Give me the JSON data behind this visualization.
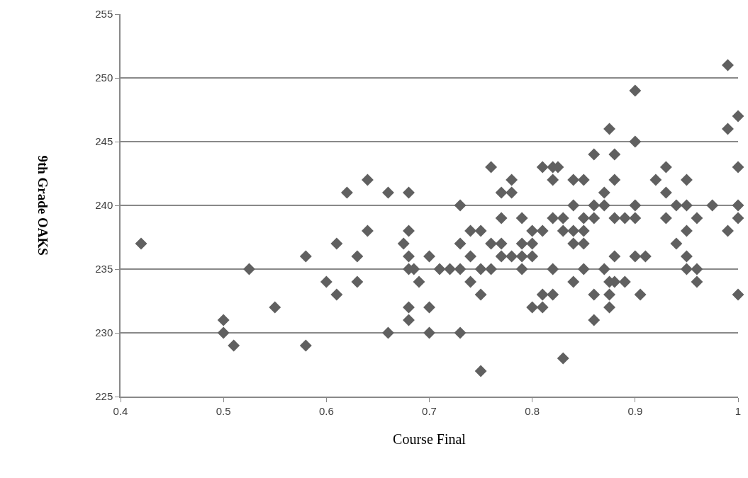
{
  "chart_data": {
    "type": "scatter",
    "xlabel": "Course Final",
    "ylabel": "9th Grade OAKS",
    "xlim": [
      0.4,
      1
    ],
    "xticks": [
      0.4,
      0.5,
      0.6,
      0.7,
      0.8,
      0.9,
      1
    ],
    "ylim": [
      225,
      255
    ],
    "yticks": [
      225,
      230,
      235,
      240,
      245,
      250,
      255
    ],
    "grid": "y",
    "marker": "diamond",
    "series": [
      {
        "color": "#606060",
        "x": [
          0.42,
          0.5,
          0.5,
          0.51,
          0.525,
          0.55,
          0.58,
          0.58,
          0.6,
          0.61,
          0.61,
          0.62,
          0.63,
          0.63,
          0.64,
          0.64,
          0.66,
          0.66,
          0.675,
          0.68,
          0.68,
          0.68,
          0.68,
          0.68,
          0.68,
          0.685,
          0.69,
          0.7,
          0.7,
          0.7,
          0.71,
          0.72,
          0.73,
          0.73,
          0.73,
          0.73,
          0.74,
          0.74,
          0.74,
          0.75,
          0.75,
          0.75,
          0.75,
          0.76,
          0.76,
          0.76,
          0.77,
          0.77,
          0.77,
          0.77,
          0.78,
          0.78,
          0.78,
          0.79,
          0.79,
          0.79,
          0.79,
          0.8,
          0.8,
          0.8,
          0.8,
          0.81,
          0.81,
          0.81,
          0.81,
          0.82,
          0.82,
          0.82,
          0.82,
          0.82,
          0.825,
          0.83,
          0.83,
          0.83,
          0.84,
          0.84,
          0.84,
          0.84,
          0.84,
          0.85,
          0.85,
          0.85,
          0.85,
          0.85,
          0.86,
          0.86,
          0.86,
          0.86,
          0.86,
          0.87,
          0.87,
          0.87,
          0.875,
          0.875,
          0.875,
          0.875,
          0.88,
          0.88,
          0.88,
          0.88,
          0.88,
          0.89,
          0.89,
          0.9,
          0.9,
          0.9,
          0.9,
          0.9,
          0.905,
          0.91,
          0.92,
          0.93,
          0.93,
          0.93,
          0.94,
          0.94,
          0.95,
          0.95,
          0.95,
          0.95,
          0.95,
          0.96,
          0.96,
          0.96,
          0.975,
          0.99,
          0.99,
          0.99,
          1.0,
          1.0,
          1.0,
          1.0,
          1.0
        ],
        "values": [
          237,
          231,
          230,
          229,
          235,
          232,
          236,
          229,
          234,
          237,
          233,
          241,
          236,
          234,
          242,
          238,
          241,
          230,
          237,
          241,
          238,
          236,
          235,
          232,
          231,
          235,
          234,
          236,
          232,
          230,
          235,
          235,
          240,
          237,
          235,
          230,
          238,
          236,
          234,
          238,
          235,
          233,
          227,
          243,
          237,
          235,
          241,
          239,
          237,
          236,
          242,
          241,
          236,
          239,
          237,
          236,
          235,
          238,
          237,
          236,
          232,
          243,
          238,
          233,
          232,
          243,
          242,
          239,
          235,
          233,
          243,
          239,
          238,
          228,
          242,
          240,
          238,
          237,
          234,
          242,
          239,
          238,
          237,
          235,
          244,
          240,
          239,
          233,
          231,
          241,
          240,
          235,
          246,
          234,
          233,
          232,
          244,
          242,
          239,
          236,
          234,
          239,
          234,
          249,
          245,
          240,
          239,
          236,
          233,
          236,
          242,
          243,
          241,
          239,
          240,
          237,
          242,
          240,
          238,
          236,
          235,
          239,
          235,
          234,
          240,
          251,
          246,
          238,
          247,
          243,
          240,
          239,
          233
        ]
      }
    ]
  }
}
